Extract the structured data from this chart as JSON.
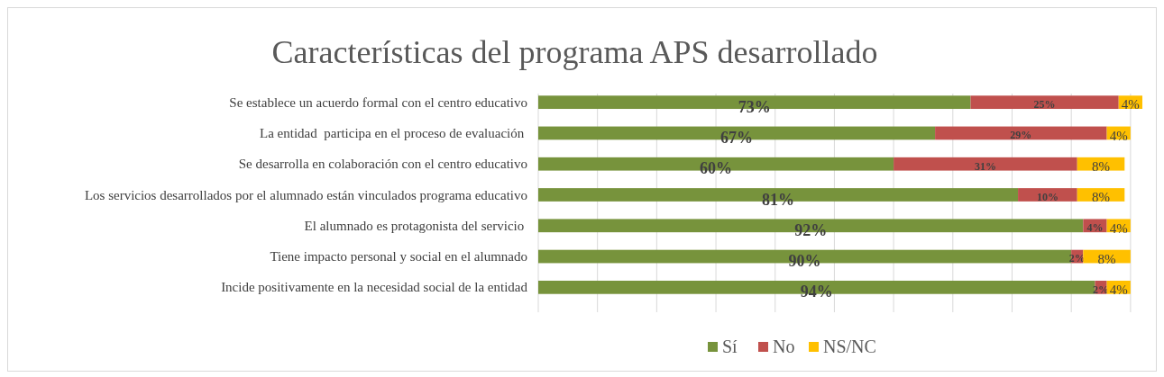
{
  "chart_data": {
    "type": "bar",
    "title": "Características del programa APS desarrollado",
    "orientation": "horizontal",
    "stacked": true,
    "grid": "x",
    "legend": "bottom",
    "tick_labels": "y",
    "categories": [
      "Se establece un acuerdo formal con el centro educativo",
      "La entidad  participa en el proceso de evaluación ",
      "Se desarrolla en colaboración con el centro educativo",
      "Los servicios desarrollados por el alumnado están vinculados programa educativo",
      "El alumnado es protagonista del servicio ",
      "Tiene impacto personal y social en el alumnado",
      "Incide positivamente en la necesidad social de la entidad"
    ],
    "series": [
      {
        "name": "Sí",
        "color": "#77933c",
        "values": [
          73,
          67,
          60,
          81,
          92,
          90,
          94
        ],
        "value_labels": [
          "73%",
          "67%",
          "60%",
          "81%",
          "92%",
          "90%",
          "94%"
        ]
      },
      {
        "name": "No",
        "color": "#c0504d",
        "values": [
          25,
          29,
          31,
          10,
          4,
          2,
          2
        ],
        "value_labels": [
          "25%",
          "29%",
          "31%",
          "10%",
          "4%",
          "2%",
          "2%"
        ]
      },
      {
        "name": "NS/NC",
        "color": "#ffc000",
        "values": [
          4,
          4,
          8,
          8,
          4,
          8,
          4
        ],
        "value_labels": [
          "4%",
          "4%",
          "8%",
          "8%",
          "4%",
          "8%",
          "4%"
        ]
      }
    ]
  }
}
